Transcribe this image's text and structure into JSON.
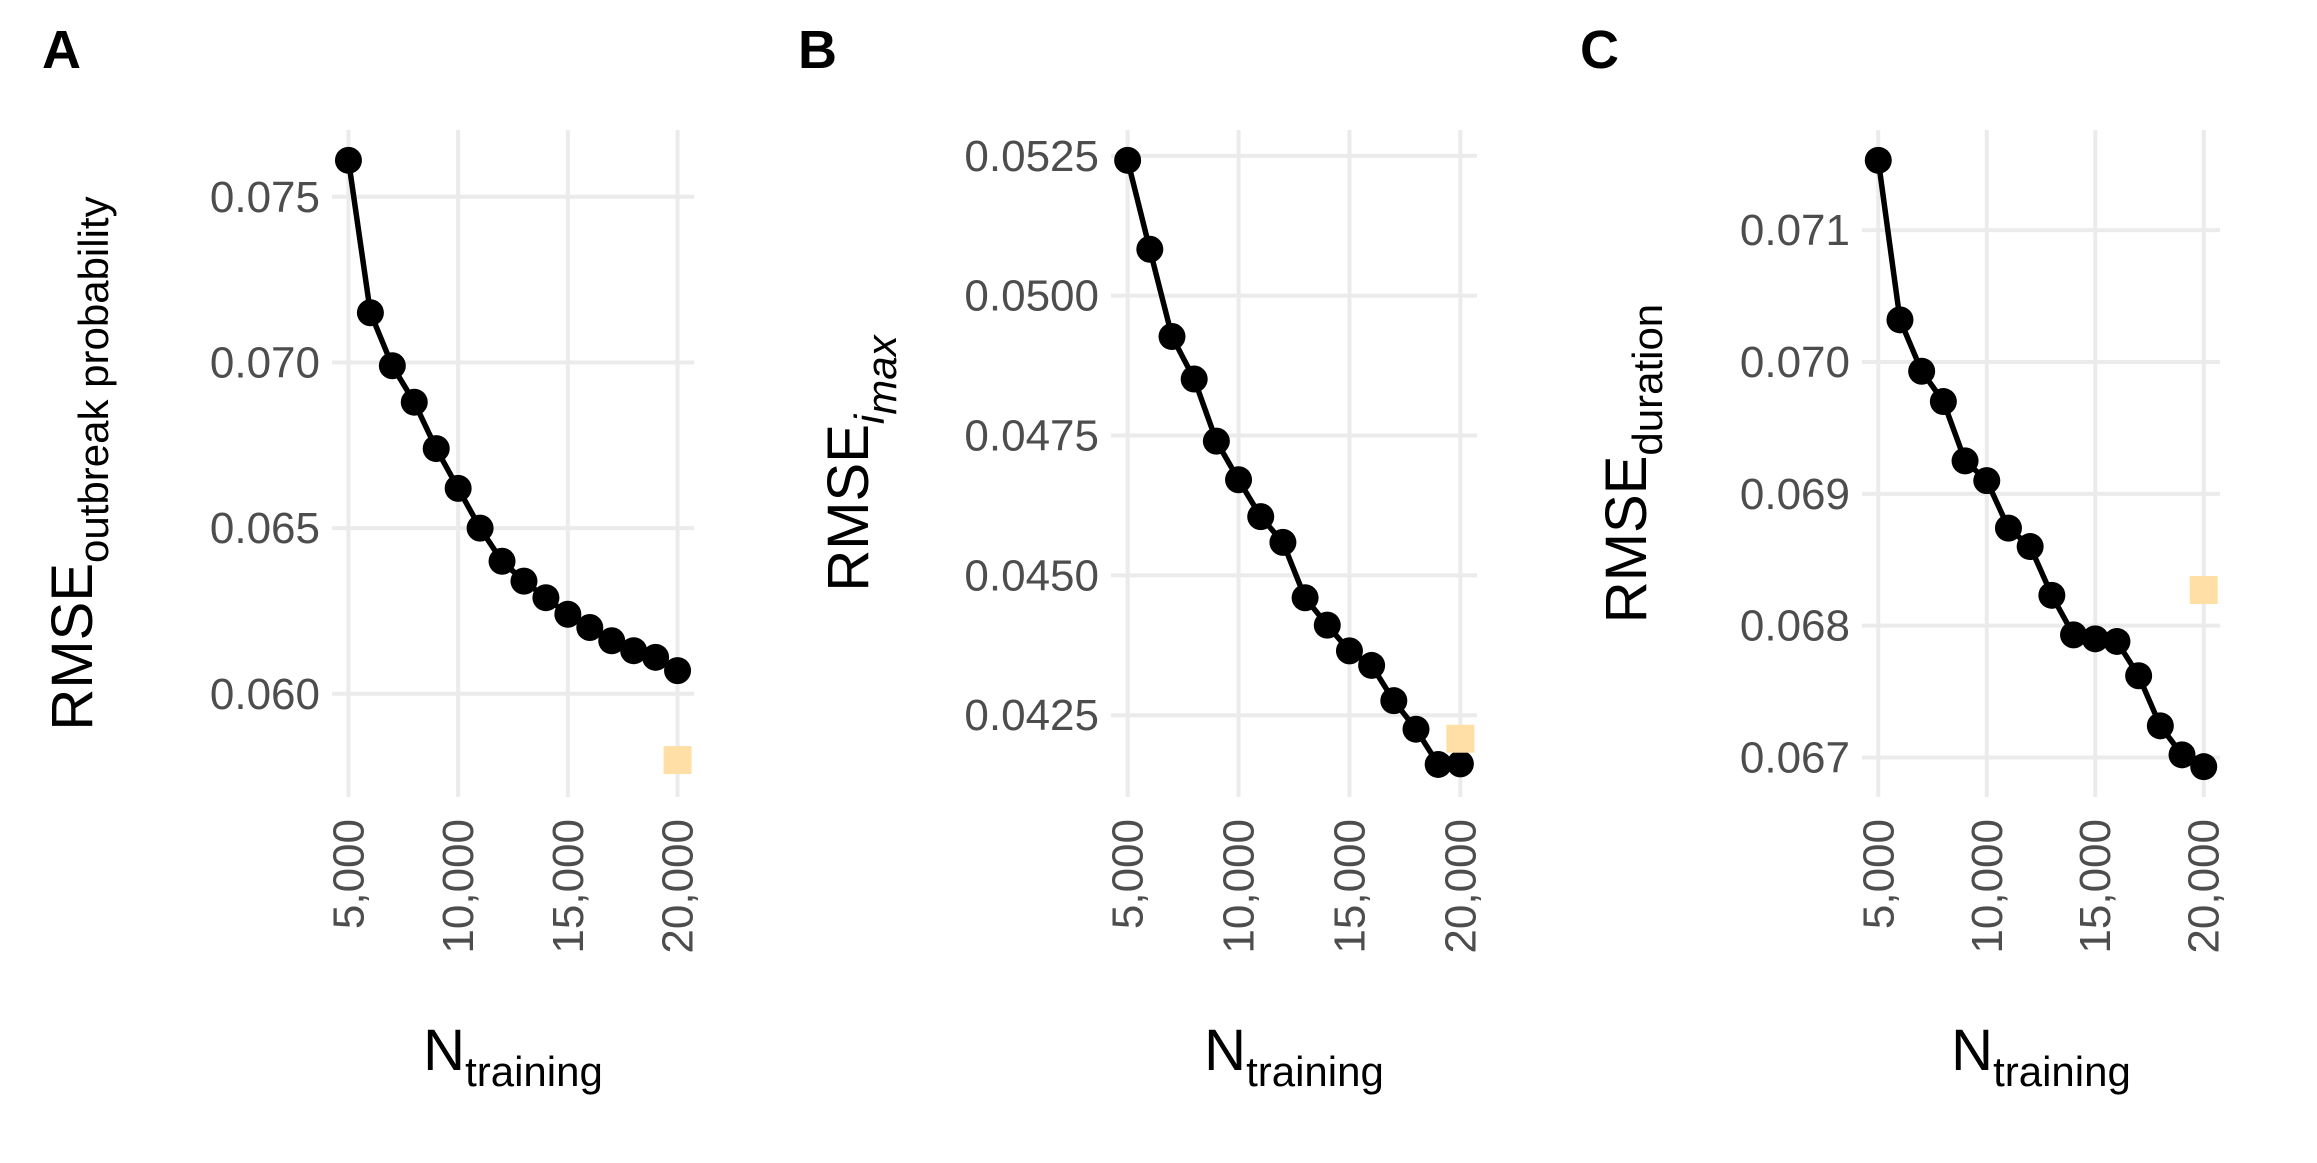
{
  "colors": {
    "series": "#000000",
    "reference": "#ffdfa6",
    "grid": "#ebebeb",
    "tick_text": "#4d4d4d"
  },
  "chart_data": [
    {
      "type": "line",
      "panel": "A",
      "xlabel": {
        "main": "N",
        "sub": "training"
      },
      "ylabel": {
        "main": "RMSE",
        "sub": "outbreak probability",
        "sub_italic": false
      },
      "xlim": [
        5000,
        20000
      ],
      "ylim": [
        0.0578,
        0.0761
      ],
      "xticks": [
        5000,
        10000,
        15000,
        20000
      ],
      "xtick_labels": [
        "5,000",
        "10,000",
        "15,000",
        "20,000"
      ],
      "yticks": [
        0.06,
        0.065,
        0.07,
        0.075
      ],
      "ytick_labels": [
        "0.060",
        "0.065",
        "0.070",
        "0.075"
      ],
      "grid": true,
      "series": [
        {
          "x": [
            5000,
            6000,
            7000,
            8000,
            9000,
            10000,
            11000,
            12000,
            13000,
            14000,
            15000,
            16000,
            17000,
            18000,
            19000,
            20000
          ],
          "y": [
            0.0761,
            0.0715,
            0.0699,
            0.0688,
            0.0674,
            0.0662,
            0.065,
            0.064,
            0.0634,
            0.0629,
            0.0624,
            0.062,
            0.0616,
            0.0613,
            0.0611,
            0.0607
          ]
        }
      ],
      "reference_point": {
        "x": 20000,
        "y": 0.058
      }
    },
    {
      "type": "line",
      "panel": "B",
      "xlabel": {
        "main": "N",
        "sub": "training"
      },
      "ylabel": {
        "main": "RMSE",
        "sub": "i max",
        "sub_italic": true
      },
      "xlim": [
        5000,
        20000
      ],
      "ylim": [
        0.04158,
        0.05242
      ],
      "xticks": [
        5000,
        10000,
        15000,
        20000
      ],
      "xtick_labels": [
        "5,000",
        "10,000",
        "15,000",
        "20,000"
      ],
      "yticks": [
        0.0425,
        0.045,
        0.0475,
        0.05,
        0.0525
      ],
      "ytick_labels": [
        "0.0425",
        "0.0450",
        "0.0475",
        "0.0500",
        "0.0525"
      ],
      "grid": true,
      "series": [
        {
          "x": [
            5000,
            6000,
            7000,
            8000,
            9000,
            10000,
            11000,
            12000,
            13000,
            14000,
            15000,
            16000,
            17000,
            18000,
            19000,
            20000
          ],
          "y": [
            0.05242,
            0.05083,
            0.04927,
            0.04851,
            0.0474,
            0.04671,
            0.04605,
            0.04559,
            0.0446,
            0.04411,
            0.04365,
            0.04339,
            0.04276,
            0.04225,
            0.04162,
            0.04163
          ]
        }
      ],
      "reference_point": {
        "x": 20000,
        "y": 0.04208
      }
    },
    {
      "type": "line",
      "panel": "C",
      "xlabel": {
        "main": "N",
        "sub": "training"
      },
      "ylabel": {
        "main": "RMSE",
        "sub": "duration",
        "sub_italic": false
      },
      "xlim": [
        5000,
        20000
      ],
      "ylim": [
        0.06693,
        0.07153
      ],
      "xticks": [
        5000,
        10000,
        15000,
        20000
      ],
      "xtick_labels": [
        "5,000",
        "10,000",
        "15,000",
        "20,000"
      ],
      "yticks": [
        0.067,
        0.068,
        0.069,
        0.07,
        0.071
      ],
      "ytick_labels": [
        "0.067",
        "0.068",
        "0.069",
        "0.070",
        "0.071"
      ],
      "grid": true,
      "series": [
        {
          "x": [
            5000,
            6000,
            7000,
            8000,
            9000,
            10000,
            11000,
            12000,
            13000,
            14000,
            15000,
            16000,
            17000,
            18000,
            19000,
            20000
          ],
          "y": [
            0.07153,
            0.07032,
            0.06993,
            0.0697,
            0.06925,
            0.0691,
            0.06874,
            0.0686,
            0.06823,
            0.06793,
            0.0679,
            0.06788,
            0.06762,
            0.06724,
            0.06702,
            0.06693
          ]
        }
      ],
      "reference_point": {
        "x": 20000,
        "y": 0.06827
      }
    }
  ]
}
